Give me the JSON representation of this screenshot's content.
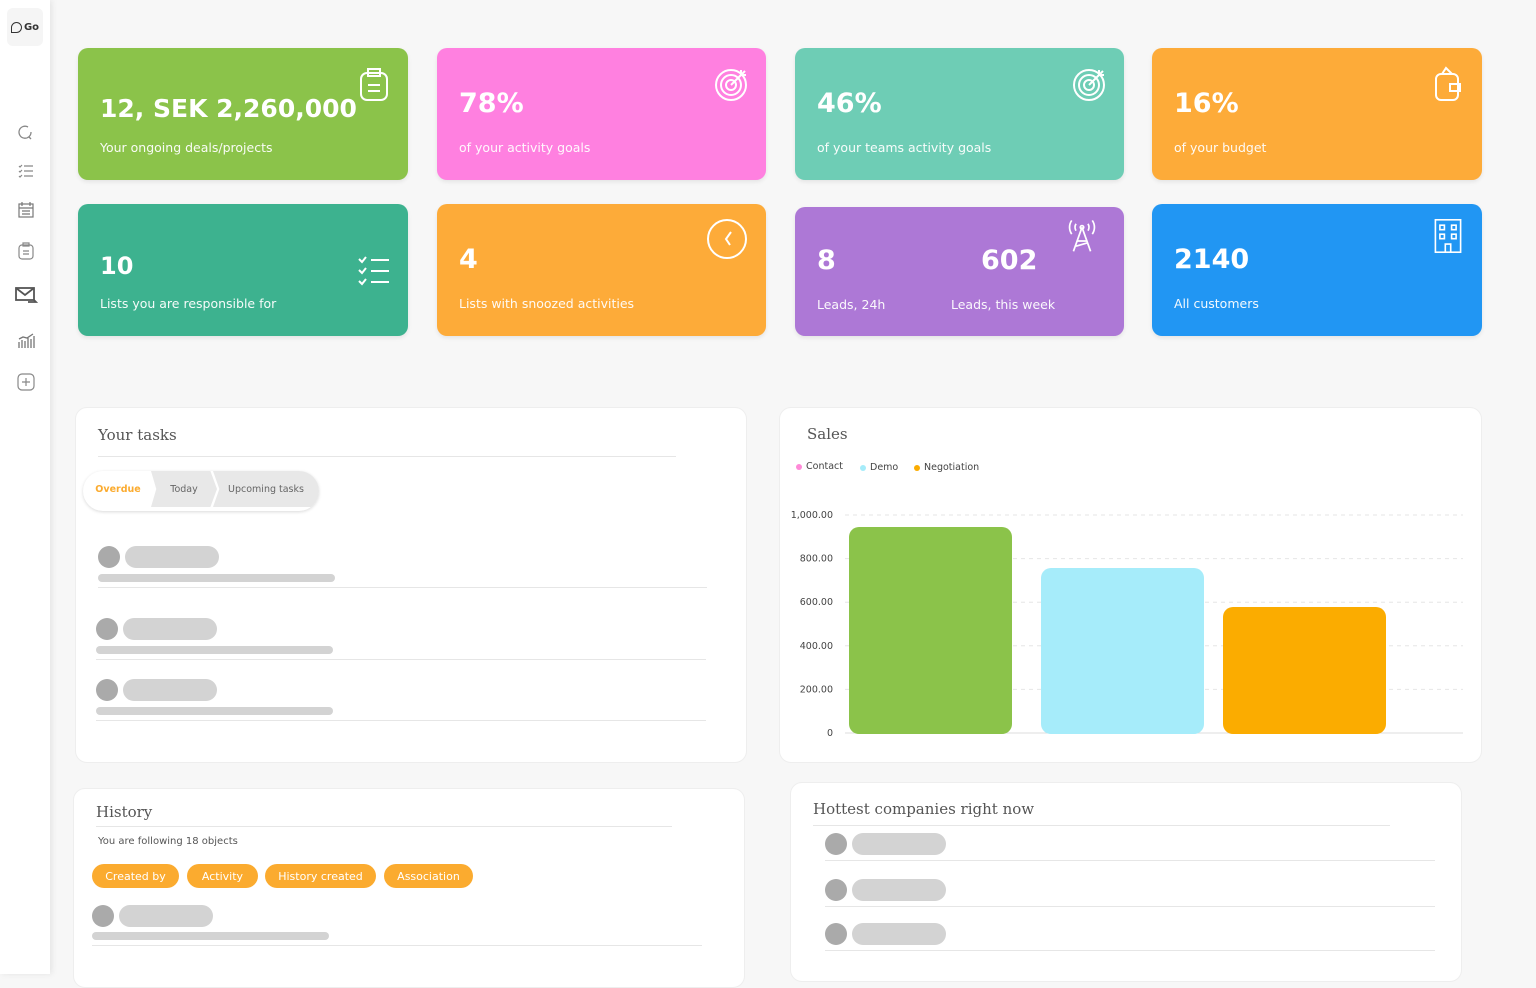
{
  "sidebar": {
    "logo": "Go",
    "items": [
      "search-icon",
      "list-icon",
      "calendar-icon",
      "clipboard-icon",
      "mail-forward-icon",
      "chart-icon",
      "add-icon"
    ]
  },
  "cards": [
    {
      "value": "12, SEK 2,260,000",
      "label": "Your ongoing deals/projects",
      "color": "#8bc34a",
      "icon": "clipboard-icon"
    },
    {
      "value": "78%",
      "label": "of your activity goals",
      "color": "#ff80e0",
      "icon": "target-icon"
    },
    {
      "value": "46%",
      "label": "of your teams activity goals",
      "color": "#6ecdb5",
      "icon": "target-icon"
    },
    {
      "value": "16%",
      "label": "of your budget",
      "color": "#fdab39",
      "icon": "wallet-icon"
    },
    {
      "value": "10",
      "label": "Lists you are responsible for",
      "color": "#3db28f",
      "icon": "checklist-icon"
    },
    {
      "value": "4",
      "label": "Lists with snoozed activities",
      "color": "#fdab39",
      "icon": "clock-icon"
    },
    {
      "value": "8",
      "label": "Leads, 24h",
      "value2": "602",
      "label2": "Leads, this week",
      "color": "#ad78d6",
      "icon": "antenna-icon"
    },
    {
      "value": "2140",
      "label": "All customers",
      "color": "#2196f3",
      "icon": "building-icon"
    }
  ],
  "tasks": {
    "title": "Your tasks",
    "tabs": [
      "Overdue",
      "Today",
      "Upcoming tasks"
    ],
    "active_tab": "Overdue"
  },
  "history": {
    "title": "History",
    "following": "You are following 18 objects",
    "filters": [
      "Created by",
      "Activity",
      "History created",
      "Association"
    ]
  },
  "hottest": {
    "title": "Hottest companies right now"
  },
  "sales": {
    "title": "Sales"
  },
  "chart_data": {
    "type": "bar",
    "title": "Sales",
    "series": [
      {
        "name": "Contact",
        "color": "#ff8ad8"
      },
      {
        "name": "Demo",
        "color": "#a6ecfa"
      },
      {
        "name": "Negotiation",
        "color": "#fbac00"
      }
    ],
    "values": [
      945,
      757,
      578
    ],
    "bar_colors": [
      "#8bc34a",
      "#a6ecfa",
      "#fbac00"
    ],
    "ylim": [
      0,
      1000
    ],
    "yticks": [
      "0",
      "200.00",
      "400.00",
      "600.00",
      "800.00",
      "1,000.00"
    ],
    "legend": "top-left",
    "grid": true
  }
}
